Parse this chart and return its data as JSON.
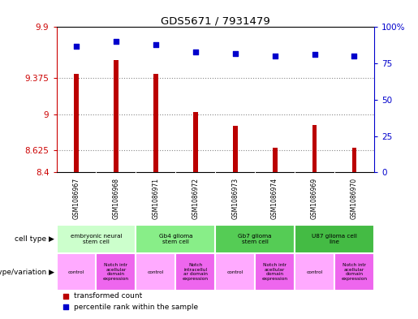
{
  "title": "GDS5671 / 7931479",
  "samples": [
    "GSM1086967",
    "GSM1086968",
    "GSM1086971",
    "GSM1086972",
    "GSM1086973",
    "GSM1086974",
    "GSM1086969",
    "GSM1086970"
  ],
  "transformed_counts": [
    9.42,
    9.56,
    9.42,
    9.02,
    8.88,
    8.65,
    8.89,
    8.65
  ],
  "percentile_ranks": [
    87,
    90,
    88,
    83,
    82,
    80,
    81,
    80
  ],
  "ylim_left": [
    8.4,
    9.9
  ],
  "ylim_right": [
    0,
    100
  ],
  "yticks_left": [
    8.4,
    8.625,
    9.0,
    9.375,
    9.9
  ],
  "yticks_right": [
    0,
    25,
    50,
    75,
    100
  ],
  "ytick_labels_left": [
    "8.4",
    "8.625",
    "9",
    "9.375",
    "9.9"
  ],
  "ytick_labels_right": [
    "0",
    "25",
    "50",
    "75",
    "100%"
  ],
  "bar_color": "#bb0000",
  "dot_color": "#0000cc",
  "bar_width": 0.12,
  "cell_type_groups": [
    {
      "label": "embryonic neural\nstem cell",
      "start": 0,
      "end": 2,
      "color": "#ccffcc"
    },
    {
      "label": "Gb4 glioma\nstem cell",
      "start": 2,
      "end": 4,
      "color": "#88ee88"
    },
    {
      "label": "Gb7 glioma\nstem cell",
      "start": 4,
      "end": 6,
      "color": "#55cc55"
    },
    {
      "label": "U87 glioma cell\nline",
      "start": 6,
      "end": 8,
      "color": "#44bb44"
    }
  ],
  "genotype_groups": [
    {
      "label": "control",
      "start": 0,
      "end": 1,
      "color": "#ffaaff"
    },
    {
      "label": "Notch intr\nacellular\ndomain\nexpression",
      "start": 1,
      "end": 2,
      "color": "#ee66ee"
    },
    {
      "label": "control",
      "start": 2,
      "end": 3,
      "color": "#ffaaff"
    },
    {
      "label": "Notch\nintracellul\nar domain\nexpression",
      "start": 3,
      "end": 4,
      "color": "#ee66ee"
    },
    {
      "label": "control",
      "start": 4,
      "end": 5,
      "color": "#ffaaff"
    },
    {
      "label": "Notch intr\nacellular\ndomain\nexpression",
      "start": 5,
      "end": 6,
      "color": "#ee66ee"
    },
    {
      "label": "control",
      "start": 6,
      "end": 7,
      "color": "#ffaaff"
    },
    {
      "label": "Notch intr\nacellular\ndomain\nexpression",
      "start": 7,
      "end": 8,
      "color": "#ee66ee"
    }
  ],
  "legend_labels": [
    "transformed count",
    "percentile rank within the sample"
  ],
  "legend_colors": [
    "#bb0000",
    "#0000cc"
  ],
  "grid_color": "#888888",
  "bg_color": "#ffffff",
  "sample_bg_color": "#cccccc"
}
